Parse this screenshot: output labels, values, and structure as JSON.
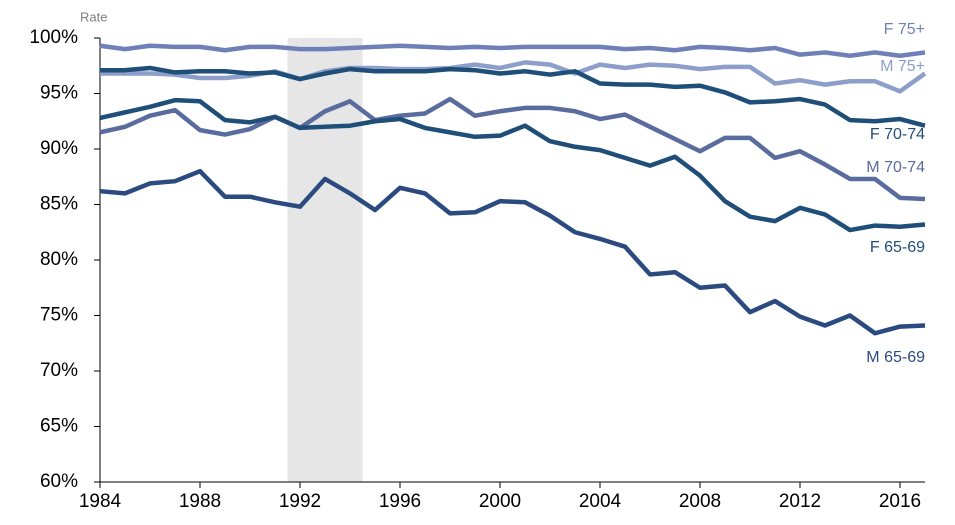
{
  "chart_data": {
    "type": "line",
    "y_label": "Rate",
    "x": [
      1984,
      1985,
      1986,
      1987,
      1988,
      1989,
      1990,
      1991,
      1992,
      1993,
      1994,
      1995,
      1996,
      1997,
      1998,
      1999,
      2000,
      2001,
      2002,
      2003,
      2004,
      2005,
      2006,
      2007,
      2008,
      2009,
      2010,
      2011,
      2012,
      2013,
      2014,
      2015,
      2016,
      2017
    ],
    "xlim": [
      1984,
      2017
    ],
    "xticks": [
      1984,
      1988,
      1992,
      1996,
      2000,
      2004,
      2008,
      2012,
      2016
    ],
    "ylim": [
      60,
      100
    ],
    "yticks": [
      {
        "value": 60,
        "label": "60%"
      },
      {
        "value": 65,
        "label": "65%"
      },
      {
        "value": 70,
        "label": "70%"
      },
      {
        "value": 75,
        "label": "75%"
      },
      {
        "value": 80,
        "label": "80%"
      },
      {
        "value": 85,
        "label": "85%"
      },
      {
        "value": 90,
        "label": "90%"
      },
      {
        "value": 95,
        "label": "95%"
      },
      {
        "value": 100,
        "label": "100%"
      }
    ],
    "shaded_x": [
      1991.5,
      1994.5
    ],
    "shade_color": "#e6e6e6",
    "series": [
      {
        "name": "F 75+",
        "color": "#6f80b8",
        "values": [
          99.3,
          99.0,
          99.3,
          99.2,
          99.2,
          98.9,
          99.2,
          99.2,
          99.0,
          99.0,
          99.1,
          99.2,
          99.3,
          99.2,
          99.1,
          99.2,
          99.1,
          99.2,
          99.2,
          99.2,
          99.2,
          99.0,
          99.1,
          98.9,
          99.2,
          99.1,
          98.9,
          99.1,
          98.5,
          98.7,
          98.4,
          98.7,
          98.4,
          98.7
        ]
      },
      {
        "name": "M 75+",
        "color": "#8d9ecb",
        "values": [
          96.8,
          96.8,
          96.8,
          96.7,
          96.4,
          96.4,
          96.6,
          97.0,
          96.3,
          97.0,
          97.3,
          97.3,
          97.2,
          97.2,
          97.3,
          97.6,
          97.3,
          97.8,
          97.6,
          96.8,
          97.6,
          97.3,
          97.6,
          97.5,
          97.2,
          97.4,
          97.4,
          95.9,
          96.2,
          95.8,
          96.1,
          96.1,
          95.2,
          96.8
        ]
      },
      {
        "name": "F 70-74",
        "color": "#1f4e79",
        "values": [
          97.1,
          97.1,
          97.3,
          96.9,
          97.0,
          97.0,
          96.8,
          96.9,
          96.3,
          96.8,
          97.2,
          97.0,
          97.0,
          97.0,
          97.2,
          97.1,
          96.8,
          97.0,
          96.7,
          97.0,
          95.9,
          95.8,
          95.8,
          95.6,
          95.7,
          95.1,
          94.2,
          94.3,
          94.5,
          94.0,
          92.6,
          92.5,
          92.7,
          92.1
        ]
      },
      {
        "name": "M 70-74",
        "color": "#5a6b9e",
        "values": [
          91.5,
          92.0,
          93.0,
          93.5,
          91.7,
          91.3,
          91.8,
          92.9,
          91.9,
          93.4,
          94.3,
          92.6,
          93.0,
          93.2,
          94.5,
          93.0,
          93.4,
          93.7,
          93.7,
          93.4,
          92.7,
          93.1,
          92.0,
          90.9,
          89.8,
          91.0,
          91.0,
          89.2,
          89.8,
          88.6,
          87.3,
          87.3,
          85.6,
          85.5
        ]
      },
      {
        "name": "F 65-69",
        "color": "#1f4e79",
        "values": [
          92.8,
          93.3,
          93.8,
          94.4,
          94.3,
          92.6,
          92.4,
          92.9,
          91.9,
          92.0,
          92.1,
          92.5,
          92.7,
          91.9,
          91.5,
          91.1,
          91.2,
          92.1,
          90.7,
          90.2,
          89.9,
          89.2,
          88.5,
          89.3,
          87.6,
          85.3,
          83.9,
          83.5,
          84.7,
          84.1,
          82.7,
          83.1,
          83.0,
          83.2
        ]
      },
      {
        "name": "M 65-69",
        "color": "#2a4a80",
        "values": [
          86.2,
          86.0,
          86.9,
          87.1,
          88.0,
          85.7,
          85.7,
          85.2,
          84.8,
          87.3,
          86.0,
          84.5,
          86.5,
          86.0,
          84.2,
          84.3,
          85.3,
          85.2,
          84.0,
          82.5,
          81.9,
          81.2,
          78.7,
          78.9,
          77.5,
          77.7,
          75.3,
          76.3,
          74.9,
          74.1,
          75.0,
          73.4,
          74.0,
          74.1
        ]
      }
    ]
  }
}
